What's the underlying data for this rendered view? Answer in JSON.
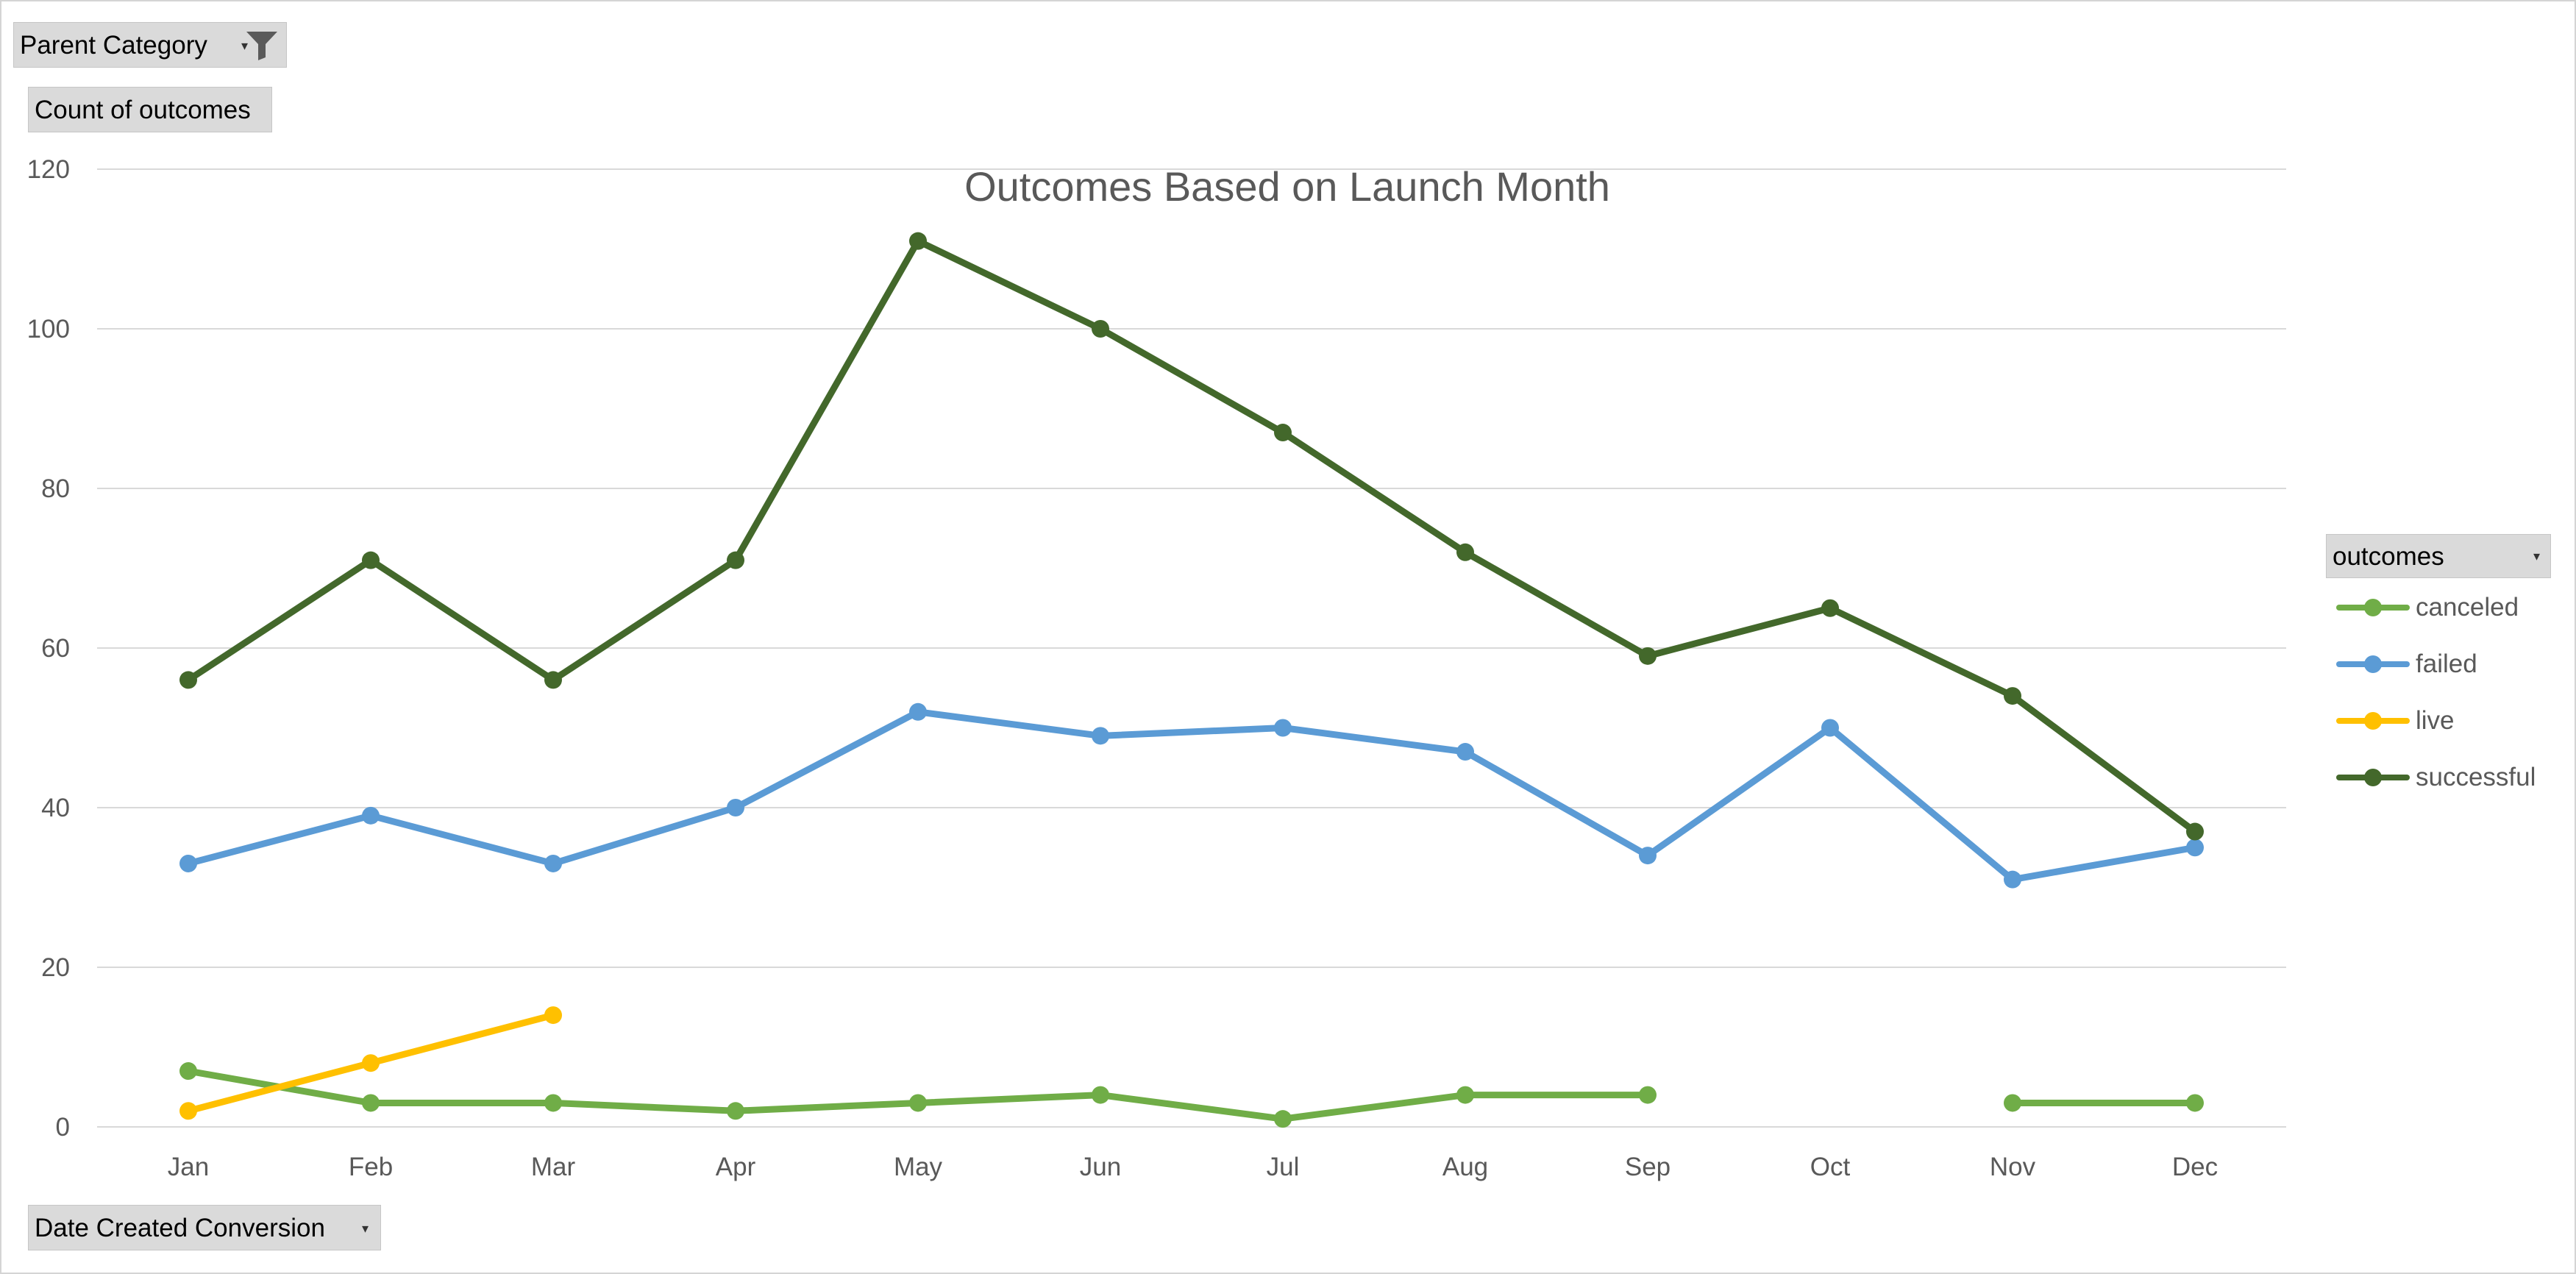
{
  "filter_button": {
    "label": "Parent Category",
    "icon": "filter-icon"
  },
  "values_button": {
    "label": "Count of outcomes"
  },
  "axis_button": {
    "label": "Date Created Conversion"
  },
  "legend_button": {
    "label": "outcomes"
  },
  "colors": {
    "canceled": "#70ad47",
    "failed": "#5b9bd5",
    "live": "#ffc000",
    "successful": "#43682b",
    "gridline": "#d9d9d9",
    "axis_text": "#595959"
  },
  "chart_data": {
    "type": "line",
    "title": "Outcomes Based on Launch Month",
    "xlabel": "",
    "ylabel": "",
    "ylim": [
      0,
      120
    ],
    "yticks": [
      0,
      20,
      40,
      60,
      80,
      100,
      120
    ],
    "grid": true,
    "legend_position": "right",
    "categories": [
      "Jan",
      "Feb",
      "Mar",
      "Apr",
      "May",
      "Jun",
      "Jul",
      "Aug",
      "Sep",
      "Oct",
      "Nov",
      "Dec"
    ],
    "series": [
      {
        "name": "canceled",
        "values": [
          7,
          3,
          3,
          2,
          3,
          4,
          1,
          4,
          4,
          null,
          3,
          3
        ]
      },
      {
        "name": "failed",
        "values": [
          33,
          39,
          33,
          40,
          52,
          49,
          50,
          47,
          34,
          50,
          31,
          35
        ]
      },
      {
        "name": "live",
        "values": [
          2,
          8,
          14,
          null,
          null,
          null,
          null,
          null,
          null,
          null,
          null,
          null
        ]
      },
      {
        "name": "successful",
        "values": [
          56,
          71,
          56,
          71,
          111,
          100,
          87,
          72,
          59,
          65,
          54,
          37
        ]
      }
    ]
  }
}
